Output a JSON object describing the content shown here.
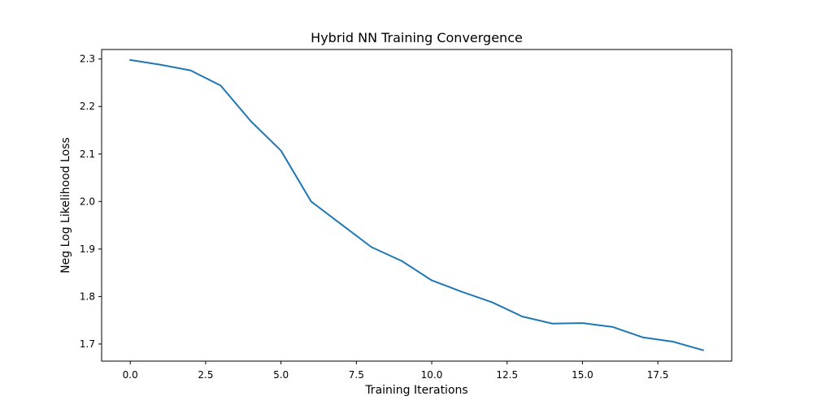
{
  "chart_data": {
    "type": "line",
    "title": "Hybrid NN Training Convergence",
    "xlabel": "Training Iterations",
    "ylabel": "Neg Log Likelihood Loss",
    "xlim": [
      -0.95,
      19.95
    ],
    "ylim": [
      1.664,
      2.32
    ],
    "xticks": [
      0.0,
      2.5,
      5.0,
      7.5,
      10.0,
      12.5,
      15.0,
      17.5
    ],
    "xtick_labels": [
      "0.0",
      "2.5",
      "5.0",
      "7.5",
      "10.0",
      "12.5",
      "15.0",
      "17.5"
    ],
    "yticks": [
      1.7,
      1.8,
      1.9,
      2.0,
      2.1,
      2.2,
      2.3
    ],
    "ytick_labels": [
      "1.7",
      "1.8",
      "1.9",
      "2.0",
      "2.1",
      "2.2",
      "2.3"
    ],
    "grid": false,
    "series": [
      {
        "color": "#1f77b4",
        "x": [
          0,
          1,
          2,
          3,
          4,
          5,
          6,
          7,
          8,
          9,
          10,
          11,
          12,
          13,
          14,
          15,
          16,
          17,
          18,
          19
        ],
        "y": [
          2.298,
          2.288,
          2.276,
          2.244,
          2.169,
          2.107,
          2.0,
          1.952,
          1.904,
          1.875,
          1.834,
          1.81,
          1.788,
          1.758,
          1.743,
          1.744,
          1.736,
          1.714,
          1.705,
          1.687
        ]
      }
    ]
  }
}
